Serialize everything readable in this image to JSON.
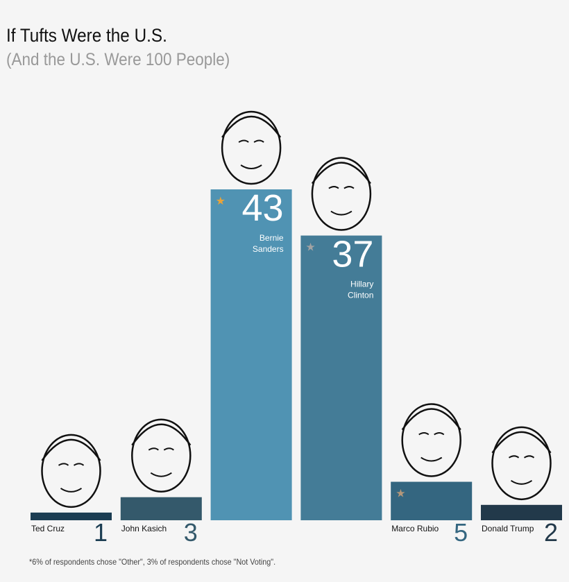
{
  "title": "If Tufts Were the U.S.",
  "subtitle": "(And the U.S. Were 100 People)",
  "footnote": "*6% of respondents chose \"Other\", 3% of respondents chose \"Not Voting\".",
  "chart_data": {
    "type": "bar",
    "categories": [
      "Ted Cruz",
      "John Kasich",
      "Bernie Sanders",
      "Hillary Clinton",
      "Marco Rubio",
      "Donald Trump"
    ],
    "values": [
      1,
      3,
      43,
      37,
      5,
      2
    ],
    "colors": [
      "#1b3d52",
      "#34596b",
      "#5093b3",
      "#447c97",
      "#346680",
      "#22394a"
    ],
    "label_inside": [
      false,
      false,
      true,
      true,
      false,
      false
    ],
    "trophies": {
      "Bernie Sanders": "gold",
      "Hillary Clinton": "silver",
      "Marco Rubio": "bronze"
    },
    "trophy_colors": {
      "gold": "#e8a33a",
      "silver": "#a3a3a3",
      "bronze": "#b4977a"
    },
    "ylim": [
      0,
      43
    ]
  }
}
